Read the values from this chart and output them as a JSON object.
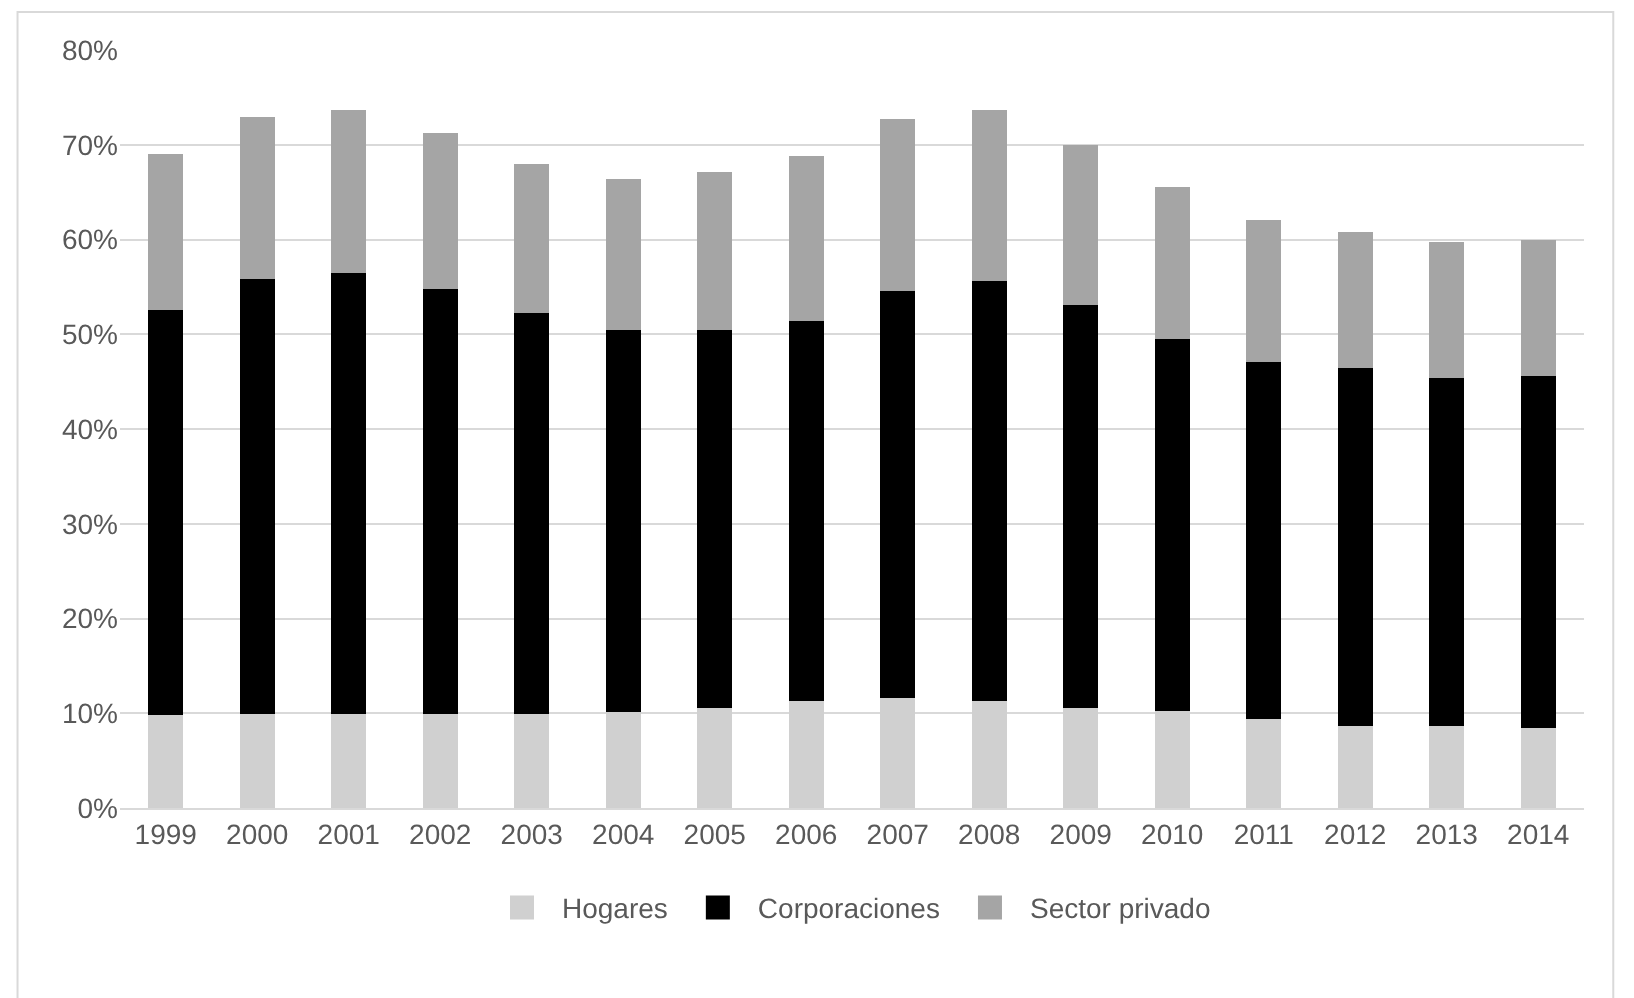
{
  "chart_data": {
    "type": "bar",
    "stacked": true,
    "categories": [
      "1999",
      "2000",
      "2001",
      "2002",
      "2003",
      "2004",
      "2005",
      "2006",
      "2007",
      "2008",
      "2009",
      "2010",
      "2011",
      "2012",
      "2013",
      "2014"
    ],
    "series": [
      {
        "name": "Hogares",
        "color": "#d0d0d0",
        "values": [
          9.8,
          9.9,
          9.9,
          9.9,
          9.9,
          10.1,
          10.6,
          11.3,
          11.6,
          11.3,
          10.6,
          10.2,
          9.4,
          8.7,
          8.7,
          8.4
        ]
      },
      {
        "name": "Corporaciones",
        "color": "#000000",
        "values": [
          42.8,
          45.9,
          46.6,
          44.9,
          42.3,
          40.3,
          39.8,
          40.1,
          43.0,
          44.3,
          42.5,
          39.3,
          37.7,
          37.7,
          36.7,
          37.2
        ]
      },
      {
        "name": "Sector privado",
        "color": "#a5a5a5",
        "values": [
          16.4,
          17.1,
          17.2,
          16.4,
          15.8,
          16.0,
          16.7,
          17.4,
          18.1,
          18.1,
          16.9,
          16.0,
          15.0,
          14.4,
          14.3,
          14.3
        ]
      }
    ],
    "ylim": [
      0,
      80
    ],
    "yticks": [
      {
        "value": 0,
        "label": "0%"
      },
      {
        "value": 10,
        "label": "10%"
      },
      {
        "value": 20,
        "label": "20%"
      },
      {
        "value": 30,
        "label": "30%"
      },
      {
        "value": 40,
        "label": "40%"
      },
      {
        "value": 50,
        "label": "50%"
      },
      {
        "value": 60,
        "label": "60%"
      },
      {
        "value": 70,
        "label": "70%"
      },
      {
        "value": 80,
        "label": "80%"
      }
    ],
    "grid": "y",
    "legend": "bottom"
  }
}
